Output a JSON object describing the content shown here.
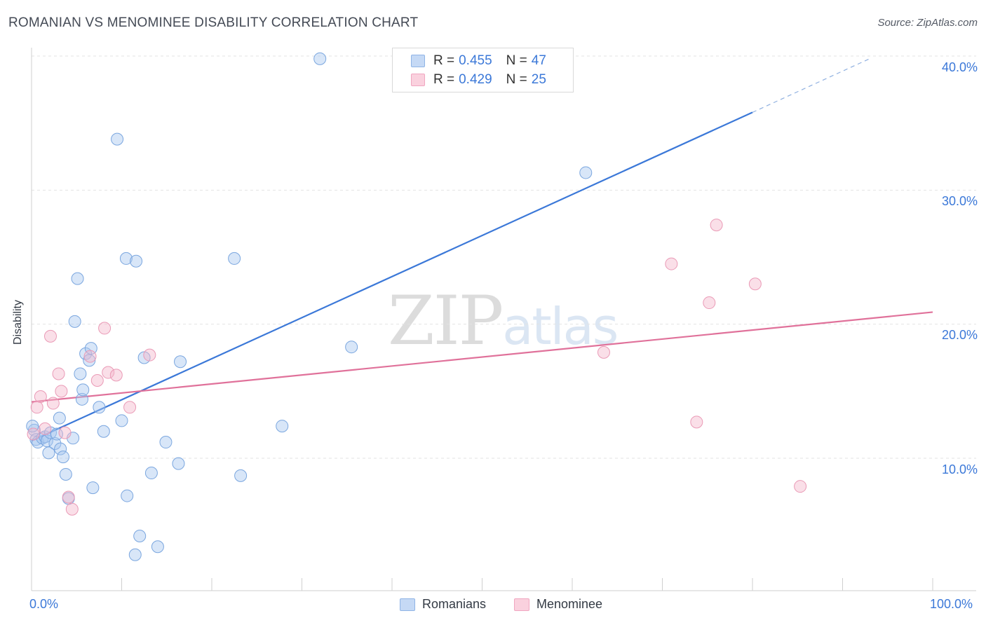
{
  "header": {
    "title": "ROMANIAN VS MENOMINEE DISABILITY CORRELATION CHART",
    "source": "Source: ZipAtlas.com"
  },
  "watermark": {
    "zip": "ZIP",
    "atlas": "atlas"
  },
  "legend": {
    "rows": [
      {
        "r_label": "R =",
        "r_value": "0.455",
        "n_label": "N =",
        "n_value": "47",
        "color": "#a9c8f0"
      },
      {
        "r_label": "R =",
        "r_value": "0.429",
        "n_label": "N =",
        "n_value": "25",
        "color": "#f5b8cc"
      }
    ]
  },
  "bottom_legend": [
    {
      "label": "Romanians",
      "color": "#a9c8f0"
    },
    {
      "label": "Menominee",
      "color": "#f5b8cc"
    }
  ],
  "chart_data": {
    "type": "scatter",
    "title": "ROMANIAN VS MENOMINEE DISABILITY CORRELATION CHART",
    "xlabel": "",
    "ylabel": "Disability",
    "x_tick_labels": [
      "0.0%",
      "100.0%"
    ],
    "y_tick_labels": [
      "10.0%",
      "20.0%",
      "30.0%",
      "40.0%"
    ],
    "xlim": [
      0,
      100
    ],
    "ylim": [
      1,
      41
    ],
    "y_ticks": [
      10,
      20,
      30,
      40
    ],
    "grid": true,
    "legend_placement": "top-center",
    "colors": {
      "blue": "#3b78d8",
      "blue_fill": "#a9c8f0",
      "pink": "#e0719a",
      "pink_fill": "#f5b8cc"
    },
    "series": [
      {
        "name": "Romanians",
        "color": "#3b78d8",
        "points": [
          [
            0.3,
            12.1
          ],
          [
            0.5,
            11.4
          ],
          [
            0.7,
            11.2
          ],
          [
            1.2,
            11.5
          ],
          [
            1.5,
            11.6
          ],
          [
            1.7,
            11.3
          ],
          [
            1.9,
            10.4
          ],
          [
            2.1,
            11.9
          ],
          [
            2.6,
            11.1
          ],
          [
            2.8,
            11.8
          ],
          [
            3.2,
            10.7
          ],
          [
            3.1,
            13.0
          ],
          [
            3.5,
            10.1
          ],
          [
            3.8,
            8.8
          ],
          [
            4.1,
            7.0
          ],
          [
            4.6,
            11.5
          ],
          [
            4.8,
            20.2
          ],
          [
            5.1,
            23.4
          ],
          [
            5.4,
            16.3
          ],
          [
            5.6,
            14.4
          ],
          [
            5.7,
            15.1
          ],
          [
            6.0,
            17.8
          ],
          [
            6.4,
            17.3
          ],
          [
            6.6,
            18.2
          ],
          [
            6.8,
            7.8
          ],
          [
            7.5,
            13.8
          ],
          [
            8.0,
            12.0
          ],
          [
            9.5,
            33.8
          ],
          [
            10.0,
            12.8
          ],
          [
            10.5,
            24.9
          ],
          [
            10.6,
            7.2
          ],
          [
            11.6,
            24.7
          ],
          [
            11.5,
            2.8
          ],
          [
            12.0,
            4.2
          ],
          [
            12.5,
            17.5
          ],
          [
            13.3,
            8.9
          ],
          [
            14.0,
            3.4
          ],
          [
            14.9,
            11.2
          ],
          [
            16.3,
            9.6
          ],
          [
            16.5,
            17.2
          ],
          [
            22.5,
            24.9
          ],
          [
            23.2,
            8.7
          ],
          [
            27.8,
            12.4
          ],
          [
            32.0,
            39.8
          ],
          [
            35.5,
            18.3
          ],
          [
            61.5,
            31.3
          ],
          [
            0.1,
            12.4
          ]
        ],
        "trend": {
          "x": [
            0,
            80
          ],
          "y": [
            11.3,
            35.8
          ],
          "dashed_extension": {
            "x": [
              80,
              93
            ],
            "y": [
              35.8,
              39.8
            ]
          }
        }
      },
      {
        "name": "Menominee",
        "color": "#e0719a",
        "points": [
          [
            0.2,
            11.8
          ],
          [
            0.6,
            13.8
          ],
          [
            1.0,
            14.6
          ],
          [
            1.5,
            12.2
          ],
          [
            2.1,
            19.1
          ],
          [
            2.4,
            14.1
          ],
          [
            3.0,
            16.3
          ],
          [
            3.3,
            15.0
          ],
          [
            3.7,
            11.9
          ],
          [
            4.1,
            7.1
          ],
          [
            4.5,
            6.2
          ],
          [
            6.5,
            17.6
          ],
          [
            7.3,
            15.8
          ],
          [
            8.1,
            19.7
          ],
          [
            8.5,
            16.4
          ],
          [
            9.4,
            16.2
          ],
          [
            10.9,
            13.8
          ],
          [
            13.1,
            17.7
          ],
          [
            63.5,
            17.9
          ],
          [
            71.0,
            24.5
          ],
          [
            73.8,
            12.7
          ],
          [
            75.2,
            21.6
          ],
          [
            76.0,
            27.4
          ],
          [
            80.3,
            23.0
          ],
          [
            85.3,
            7.9
          ]
        ],
        "trend": {
          "x": [
            0,
            100
          ],
          "y": [
            14.2,
            20.9
          ]
        }
      }
    ]
  }
}
